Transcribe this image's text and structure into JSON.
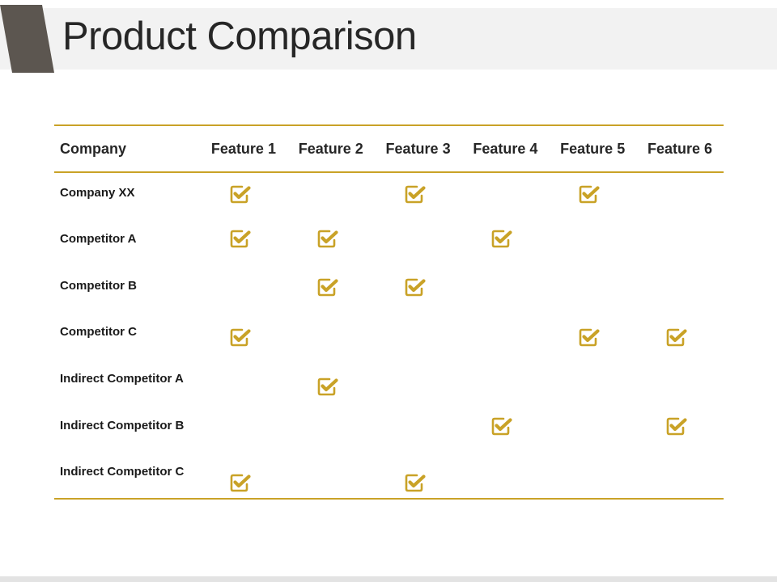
{
  "slide": {
    "title": "Product Comparison",
    "accent_color": "#5c5650",
    "check_color": "#c9a227",
    "rule_color": "#c9a227"
  },
  "table": {
    "headers": [
      "Company",
      "Feature 1",
      "Feature 2",
      "Feature 3",
      "Feature 4",
      "Feature 5",
      "Feature 6"
    ],
    "rows": [
      {
        "label": "Company XX",
        "checks": [
          true,
          false,
          true,
          false,
          true,
          false
        ]
      },
      {
        "label": "Competitor A",
        "checks": [
          true,
          true,
          false,
          true,
          false,
          false
        ]
      },
      {
        "label": "Competitor B",
        "checks": [
          false,
          true,
          true,
          false,
          false,
          false
        ]
      },
      {
        "label": "Competitor C",
        "checks": [
          true,
          false,
          false,
          false,
          true,
          true
        ]
      },
      {
        "label": "Indirect Competitor A",
        "checks": [
          false,
          true,
          false,
          false,
          false,
          false
        ]
      },
      {
        "label": "Indirect Competitor B",
        "checks": [
          false,
          false,
          false,
          true,
          false,
          true
        ]
      },
      {
        "label": "Indirect Competitor C",
        "checks": [
          true,
          false,
          true,
          false,
          false,
          false
        ]
      }
    ],
    "check_icon": "checkbox-checked-icon"
  }
}
